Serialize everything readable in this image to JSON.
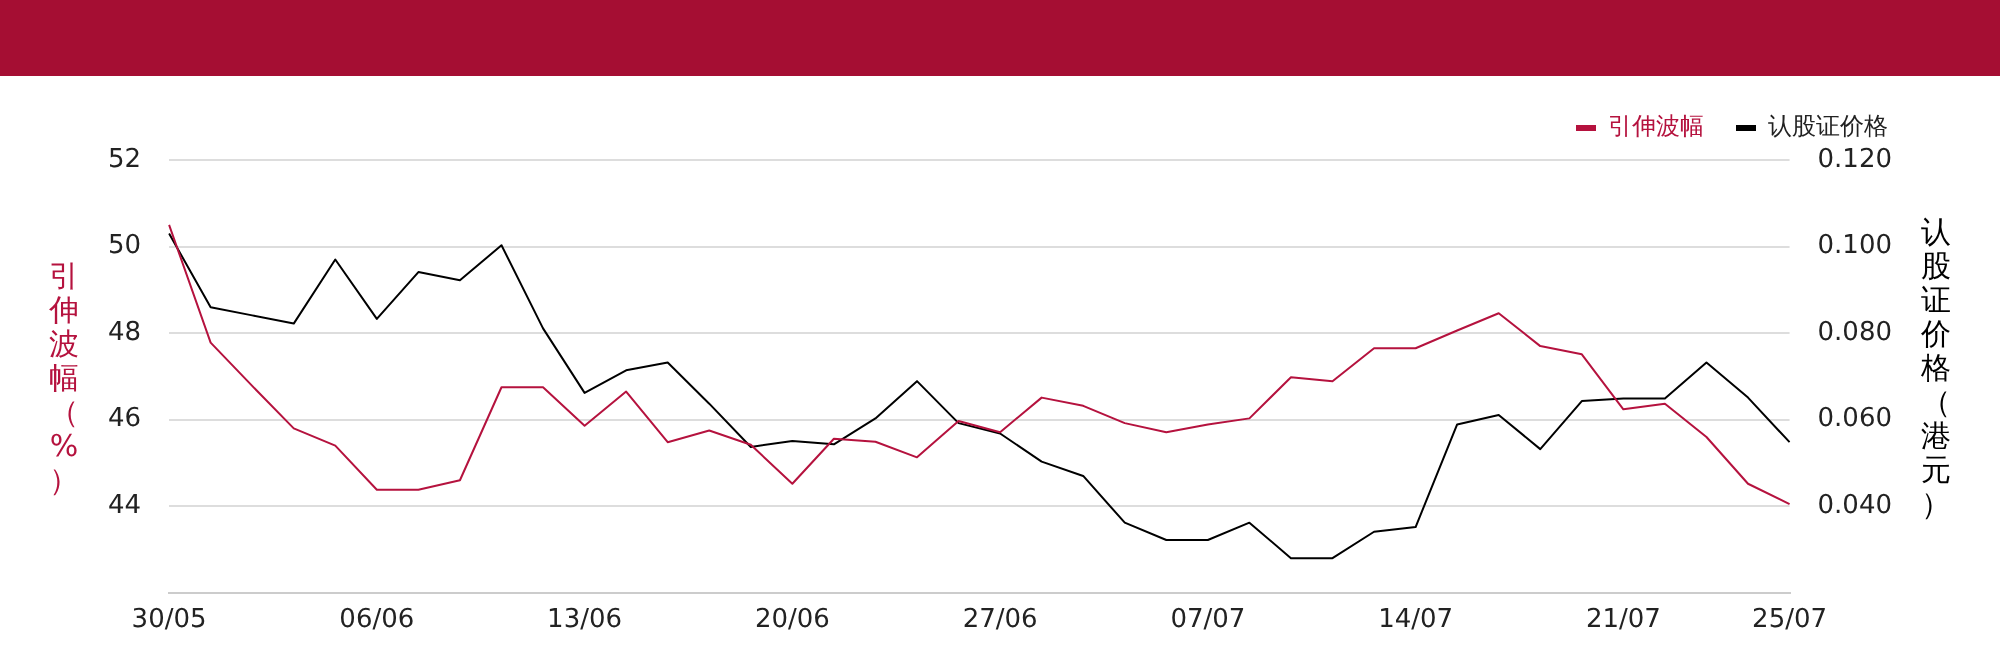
{
  "chart_data": {
    "type": "line",
    "ylabel": "引伸波幅（%）",
    "y2label": "认股证价格（港元）",
    "categories": [
      "30/05",
      null,
      null,
      null,
      null,
      "06/06",
      null,
      null,
      null,
      null,
      "13/06",
      null,
      null,
      null,
      null,
      "20/06",
      null,
      null,
      null,
      null,
      "27/06",
      null,
      null,
      null,
      null,
      "07/07",
      null,
      null,
      null,
      null,
      "14/07",
      null,
      null,
      null,
      null,
      "21/07",
      null,
      null,
      null,
      "25/07"
    ],
    "series": [
      {
        "name": "引伸波幅",
        "color": "#b5123e",
        "values": [
          50.5,
          47.78,
          46.78,
          45.8,
          45.4,
          44.38,
          44.38,
          44.6,
          46.75,
          46.75,
          45.86,
          46.65,
          45.48,
          45.75,
          45.42,
          44.52,
          45.56,
          45.49,
          45.13,
          45.97,
          45.71,
          46.51,
          46.32,
          45.92,
          45.71,
          45.89,
          46.03,
          46.98,
          46.89,
          47.65,
          47.65,
          48.06,
          48.46,
          47.7,
          47.51,
          46.24,
          46.37,
          45.6,
          44.52,
          44.05
        ]
      },
      {
        "name": "认股证价格",
        "color": "#000000",
        "axis": "y2",
        "values": [
          0.103,
          0.086,
          0.0841,
          0.0822,
          0.097,
          0.0833,
          0.0941,
          0.0922,
          0.1003,
          0.0811,
          0.0662,
          0.0714,
          0.0732,
          0.0637,
          0.0537,
          0.0551,
          0.0543,
          0.0603,
          0.0689,
          0.0592,
          0.0568,
          0.0503,
          0.047,
          0.0362,
          0.0322,
          0.0322,
          0.0362,
          0.028,
          0.028,
          0.0341,
          0.0352,
          0.0589,
          0.0611,
          0.0532,
          0.0643,
          0.0649,
          0.0649,
          0.0732,
          0.0651,
          0.0548
        ]
      }
    ],
    "ylim": [
      42,
      52
    ],
    "yticks": [
      44,
      46,
      48,
      50,
      52
    ],
    "y2lim": [
      0.02,
      0.12
    ],
    "y2ticks": [
      {
        "value": 0.04,
        "label": "0.040"
      },
      {
        "value": 0.06,
        "label": "0.060"
      },
      {
        "value": 0.08,
        "label": "0.080"
      },
      {
        "value": 0.1,
        "label": "0.100"
      },
      {
        "value": 0.12,
        "label": "0.120"
      }
    ],
    "grid": "y",
    "legend": "top right",
    "marker": "none",
    "line_style": "solid"
  }
}
